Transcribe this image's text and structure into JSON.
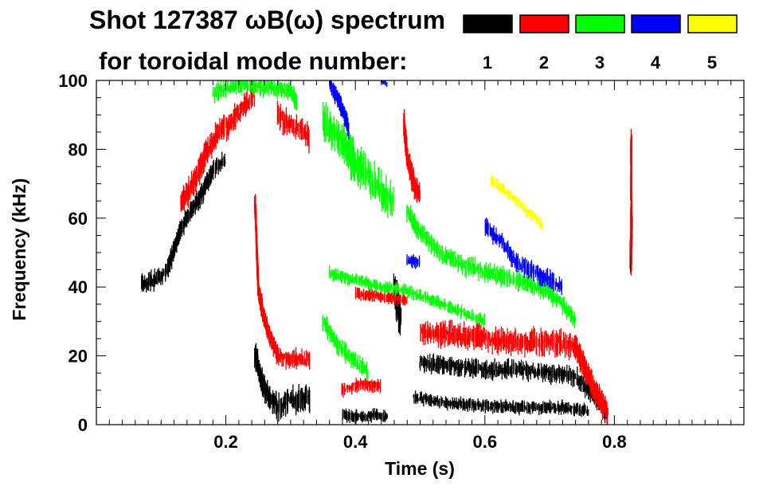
{
  "chart_data": {
    "type": "scatter",
    "title_line1": "Shot 127387 ωB(ω) spectrum",
    "title_line2": "for toroidal mode number:",
    "xlabel": "Time (s)",
    "ylabel": "Frequency (kHz)",
    "xlim": [
      0.0,
      1.0
    ],
    "ylim": [
      0,
      100
    ],
    "x_ticks": [
      {
        "value": 0.2,
        "label": "0.2"
      },
      {
        "value": 0.4,
        "label": "0.4"
      },
      {
        "value": 0.6,
        "label": "0.6"
      },
      {
        "value": 0.8,
        "label": "0.8"
      }
    ],
    "y_ticks": [
      {
        "value": 0,
        "label": "0"
      },
      {
        "value": 20,
        "label": "20"
      },
      {
        "value": 40,
        "label": "40"
      },
      {
        "value": 60,
        "label": "60"
      },
      {
        "value": 80,
        "label": "80"
      },
      {
        "value": 100,
        "label": "100"
      }
    ],
    "legend": [
      {
        "label": "1",
        "color": "#000000"
      },
      {
        "label": "2",
        "color": "#ff0000"
      },
      {
        "label": "3",
        "color": "#00ff00"
      },
      {
        "label": "4",
        "color": "#0000ff"
      },
      {
        "label": "5",
        "color": "#ffff00"
      }
    ],
    "series": [
      {
        "name": "n=1",
        "color": "#000000",
        "segments": [
          {
            "points": [
              [
                0.07,
                41
              ],
              [
                0.09,
                42
              ],
              [
                0.11,
                45
              ],
              [
                0.13,
                57
              ],
              [
                0.14,
                60
              ],
              [
                0.16,
                66
              ],
              [
                0.18,
                74
              ],
              [
                0.2,
                77
              ]
            ],
            "spread": 3
          },
          {
            "points": [
              [
                0.245,
                20
              ],
              [
                0.26,
                10
              ],
              [
                0.28,
                5
              ],
              [
                0.3,
                7
              ],
              [
                0.33,
                8
              ]
            ],
            "spread": 4
          },
          {
            "points": [
              [
                0.38,
                3
              ],
              [
                0.41,
                2
              ],
              [
                0.43,
                3
              ],
              [
                0.45,
                2
              ]
            ],
            "spread": 2
          },
          {
            "points": [
              [
                0.46,
                40
              ],
              [
                0.47,
                30
              ]
            ],
            "spread": 6
          },
          {
            "points": [
              [
                0.5,
                18
              ],
              [
                0.55,
                17
              ],
              [
                0.6,
                16
              ],
              [
                0.65,
                16
              ],
              [
                0.7,
                15
              ],
              [
                0.74,
                14
              ],
              [
                0.76,
                10
              ],
              [
                0.79,
                3
              ]
            ],
            "spread": 3
          },
          {
            "points": [
              [
                0.49,
                8
              ],
              [
                0.55,
                6
              ],
              [
                0.65,
                5
              ],
              [
                0.72,
                5
              ],
              [
                0.76,
                4
              ]
            ],
            "spread": 2
          },
          {
            "points": [
              [
                0.825,
                48
              ],
              [
                0.827,
                60
              ]
            ],
            "spread": 5
          }
        ]
      },
      {
        "name": "n=2",
        "color": "#ff0000",
        "segments": [
          {
            "points": [
              [
                0.13,
                64
              ],
              [
                0.15,
                70
              ],
              [
                0.17,
                79
              ],
              [
                0.19,
                85
              ],
              [
                0.21,
                88
              ],
              [
                0.23,
                93
              ],
              [
                0.245,
                96
              ]
            ],
            "spread": 4
          },
          {
            "points": [
              [
                0.245,
                65
              ],
              [
                0.25,
                40
              ],
              [
                0.26,
                30
              ],
              [
                0.27,
                25
              ],
              [
                0.28,
                20
              ],
              [
                0.3,
                19
              ],
              [
                0.33,
                19
              ]
            ],
            "spread": 3
          },
          {
            "points": [
              [
                0.28,
                90
              ],
              [
                0.3,
                87
              ],
              [
                0.32,
                85
              ],
              [
                0.33,
                83
              ]
            ],
            "spread": 4
          },
          {
            "points": [
              [
                0.475,
                88
              ],
              [
                0.48,
                78
              ],
              [
                0.49,
                70
              ],
              [
                0.5,
                66
              ]
            ],
            "spread": 4
          },
          {
            "points": [
              [
                0.5,
                27
              ],
              [
                0.55,
                26
              ],
              [
                0.6,
                25
              ],
              [
                0.65,
                24
              ],
              [
                0.7,
                24
              ],
              [
                0.74,
                23
              ],
              [
                0.76,
                14
              ],
              [
                0.79,
                3
              ]
            ],
            "spread": 4
          },
          {
            "points": [
              [
                0.38,
                10
              ],
              [
                0.41,
                12
              ],
              [
                0.44,
                11
              ]
            ],
            "spread": 2
          },
          {
            "points": [
              [
                0.4,
                38
              ],
              [
                0.45,
                37
              ],
              [
                0.48,
                36
              ]
            ],
            "spread": 2
          },
          {
            "points": [
              [
                0.826,
                83
              ],
              [
                0.826,
                46
              ]
            ],
            "spread": 3
          }
        ]
      },
      {
        "name": "n=3",
        "color": "#00ff00",
        "segments": [
          {
            "points": [
              [
                0.18,
                96
              ],
              [
                0.22,
                99
              ],
              [
                0.26,
                98
              ],
              [
                0.3,
                97
              ],
              [
                0.31,
                93
              ]
            ],
            "spread": 3
          },
          {
            "points": [
              [
                0.35,
                88
              ],
              [
                0.38,
                82
              ],
              [
                0.4,
                76
              ],
              [
                0.42,
                72
              ],
              [
                0.44,
                68
              ],
              [
                0.46,
                64
              ]
            ],
            "spread": 6
          },
          {
            "points": [
              [
                0.48,
                62
              ],
              [
                0.5,
                56
              ],
              [
                0.53,
                50
              ],
              [
                0.57,
                46
              ],
              [
                0.61,
                44
              ],
              [
                0.65,
                42
              ],
              [
                0.68,
                40
              ],
              [
                0.7,
                38
              ],
              [
                0.72,
                35
              ],
              [
                0.74,
                30
              ]
            ],
            "spread": 3
          },
          {
            "points": [
              [
                0.36,
                44
              ],
              [
                0.4,
                42
              ],
              [
                0.44,
                40
              ],
              [
                0.48,
                39
              ],
              [
                0.52,
                36
              ],
              [
                0.56,
                33
              ],
              [
                0.6,
                30
              ]
            ],
            "spread": 2
          },
          {
            "points": [
              [
                0.35,
                30
              ],
              [
                0.37,
                24
              ],
              [
                0.39,
                20
              ],
              [
                0.42,
                15
              ]
            ],
            "spread": 3
          }
        ]
      },
      {
        "name": "n=4",
        "color": "#0000ff",
        "segments": [
          {
            "points": [
              [
                0.36,
                99
              ],
              [
                0.38,
                92
              ],
              [
                0.39,
                86
              ]
            ],
            "spread": 3
          },
          {
            "points": [
              [
                0.44,
                100
              ],
              [
                0.45,
                99
              ]
            ],
            "spread": 1
          },
          {
            "points": [
              [
                0.6,
                58
              ],
              [
                0.63,
                52
              ],
              [
                0.65,
                47
              ],
              [
                0.68,
                44
              ],
              [
                0.7,
                42
              ],
              [
                0.72,
                40
              ]
            ],
            "spread": 3
          },
          {
            "points": [
              [
                0.48,
                48
              ],
              [
                0.5,
                47
              ]
            ],
            "spread": 2
          }
        ]
      },
      {
        "name": "n=5",
        "color": "#ffff00",
        "segments": [
          {
            "points": [
              [
                0.61,
                71
              ],
              [
                0.63,
                68
              ],
              [
                0.65,
                65
              ],
              [
                0.67,
                61
              ],
              [
                0.69,
                58
              ]
            ],
            "spread": 2
          }
        ]
      }
    ]
  }
}
